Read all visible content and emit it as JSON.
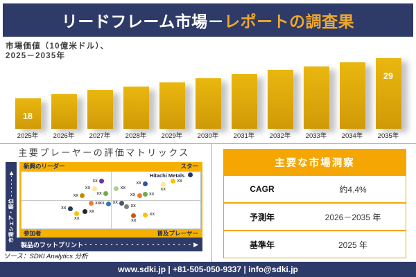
{
  "colors": {
    "navy": "#2E3A68",
    "title_gold": "#EFA829",
    "bar_gold_top": "#E9B70F",
    "bar_gold_bottom": "#CF9A07",
    "frame_gold": "#F5B100",
    "table_gold": "#F5A602",
    "divider_gray": "#ABABAB"
  },
  "header": {
    "title_white": "リードフレーム市場－",
    "title_gold": "レポートの調査果"
  },
  "chart_data": [
    {
      "type": "bar",
      "title": "市場価値（10億米ドル）、2025－2035年",
      "label_lines": [
        "市場価値（10億米ドル）、",
        "2025－2035年"
      ],
      "ylabel": "10億米ドル",
      "categories": [
        "2025年",
        "2026年",
        "2027年",
        "2028年",
        "2029年",
        "2030年",
        "2031年",
        "2032年",
        "2033年",
        "2034年",
        "2035年"
      ],
      "values": [
        18,
        19.1,
        20.2,
        21.3,
        22.4,
        23.5,
        24.6,
        25.7,
        26.8,
        27.9,
        29
      ],
      "value_labels": [
        "18",
        "",
        "",
        "",
        "",
        "",
        "",
        "",
        "",
        "",
        "29"
      ],
      "ylim": [
        0,
        32
      ],
      "grid": "off",
      "legend": "none"
    },
    {
      "type": "scatter",
      "title": "主要プレーヤーの評価マトリックス",
      "x_axis": {
        "label": "製品のフットプリント",
        "dashes": "- - - - - - - - - - - - - - - - - - - - - - - -",
        "arrow": "▶"
      },
      "y_axis": {
        "label": "市場シェア・順位",
        "dashes": "- - - - - -",
        "arrow": "▶"
      },
      "quadrants": {
        "top_left": "新興のリーダー",
        "top_right": "スター",
        "bottom_left": "参加者",
        "bottom_right": "普及プレーヤー"
      },
      "points": [
        {
          "x_pct": 44.9,
          "y_pct": 16.5,
          "color": "#7030A0",
          "label": "XX",
          "side": "left"
        },
        {
          "x_pct": 40.8,
          "y_pct": 29.8,
          "color": "#FFE699",
          "label": "XX",
          "side": "left"
        },
        {
          "x_pct": 34.1,
          "y_pct": 42.5,
          "color": "#BF8F00",
          "label": "XX",
          "side": "left"
        },
        {
          "x_pct": 47.2,
          "y_pct": 38.6,
          "color": "#70AD47",
          "label": "XX",
          "side": "left"
        },
        {
          "x_pct": 38.8,
          "y_pct": 55.8,
          "color": "#ED7D31",
          "label": "XX",
          "side": "right"
        },
        {
          "x_pct": 48.7,
          "y_pct": 56.6,
          "color": "#2E75B6",
          "label": "XX",
          "side": "left"
        },
        {
          "x_pct": 27.3,
          "y_pct": 65.1,
          "color": "#203864",
          "label": "XX",
          "side": "left"
        },
        {
          "x_pct": 35.5,
          "y_pct": 70.2,
          "color": "#262626",
          "label": "XX",
          "side": "right"
        },
        {
          "x_pct": 30.9,
          "y_pct": 73.9,
          "color": "#FFC000",
          "label": "XX",
          "side": "below"
        },
        {
          "x_pct": 94.3,
          "y_pct": 5.7,
          "color": "#1F3864",
          "label": "Hitachi Metals",
          "side": "left",
          "named": true
        },
        {
          "x_pct": 69.3,
          "y_pct": 20.8,
          "color": "#2F5597",
          "label": "XX",
          "side": "left"
        },
        {
          "x_pct": 79.2,
          "y_pct": 22.9,
          "color": "#FFE699",
          "label": "XX",
          "side": "below"
        },
        {
          "x_pct": 84.7,
          "y_pct": 16.9,
          "color": "#FFC000",
          "label": "XX",
          "side": "right"
        },
        {
          "x_pct": 53.0,
          "y_pct": 29.8,
          "color": "#A9D18E",
          "label": "XX",
          "side": "right"
        },
        {
          "x_pct": 66.0,
          "y_pct": 41.8,
          "color": "#ED7D31",
          "label": "XX",
          "side": "left"
        },
        {
          "x_pct": 69.0,
          "y_pct": 39.8,
          "color": "#70AD47",
          "label": "XX",
          "side": "right"
        },
        {
          "x_pct": 56.2,
          "y_pct": 55.0,
          "color": "#44546A",
          "label": "XX",
          "side": "left"
        },
        {
          "x_pct": 58.7,
          "y_pct": 61.1,
          "color": "#7F7F7F",
          "label": "XX",
          "side": "right"
        },
        {
          "x_pct": 62.7,
          "y_pct": 77.9,
          "color": "#C55A11",
          "label": "XX",
          "side": "below"
        },
        {
          "x_pct": 69.3,
          "y_pct": 75.9,
          "color": "#FFC000",
          "label": "XX",
          "side": "right"
        }
      ]
    }
  ],
  "insights": {
    "title": "主要な市場洞察",
    "rows": [
      {
        "label": "CAGR",
        "value": "約4.4%"
      },
      {
        "label": "予測年",
        "value": "2026－2035 年"
      },
      {
        "label": "基準年",
        "value": "2025 年"
      }
    ]
  },
  "source": {
    "text": "ソース：SDKI Analytics 分析"
  },
  "footer": {
    "text": "www.sdki.jp | +81-505-050-9337 | info@sdki.jp"
  }
}
